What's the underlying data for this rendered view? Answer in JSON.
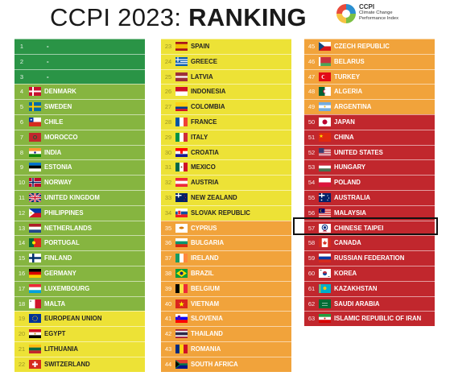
{
  "title": {
    "part1": "CCPI 2023: ",
    "part2": "RANKING"
  },
  "logo": {
    "line1": "CCPI",
    "line2": "Climate Change",
    "line3": "Performance Index"
  },
  "colors": {
    "dark_green": "#2a9446",
    "light_green": "#86b540",
    "yellow": "#ede236",
    "orange": "#f1a33b",
    "red": "#c1272d",
    "empty": "#2a9446"
  },
  "columns": [
    {
      "rows": [
        {
          "rank": "1",
          "name": "-",
          "color": "dark_green"
        },
        {
          "rank": "2",
          "name": "-",
          "color": "dark_green"
        },
        {
          "rank": "3",
          "name": "-",
          "color": "dark_green"
        },
        {
          "rank": "4",
          "name": "DENMARK",
          "color": "light_green",
          "flag": "denmark-flag-icon"
        },
        {
          "rank": "5",
          "name": "SWEDEN",
          "color": "light_green",
          "flag": "sweden-flag-icon"
        },
        {
          "rank": "6",
          "name": "CHILE",
          "color": "light_green",
          "flag": "chile-flag-icon"
        },
        {
          "rank": "7",
          "name": "MOROCCO",
          "color": "light_green",
          "flag": "morocco-flag-icon"
        },
        {
          "rank": "8",
          "name": "INDIA",
          "color": "light_green",
          "flag": "india-flag-icon"
        },
        {
          "rank": "9",
          "name": "ESTONIA",
          "color": "light_green",
          "flag": "estonia-flag-icon"
        },
        {
          "rank": "10",
          "name": "NORWAY",
          "color": "light_green",
          "flag": "norway-flag-icon"
        },
        {
          "rank": "11",
          "name": "UNITED KINGDOM",
          "color": "light_green",
          "flag": "uk-flag-icon"
        },
        {
          "rank": "12",
          "name": "PHILIPPINES",
          "color": "light_green",
          "flag": "philippines-flag-icon"
        },
        {
          "rank": "13",
          "name": "NETHERLANDS",
          "color": "light_green",
          "flag": "netherlands-flag-icon"
        },
        {
          "rank": "14",
          "name": "PORTUGAL",
          "color": "light_green",
          "flag": "portugal-flag-icon"
        },
        {
          "rank": "15",
          "name": "FINLAND",
          "color": "light_green",
          "flag": "finland-flag-icon"
        },
        {
          "rank": "16",
          "name": "GERMANY",
          "color": "light_green",
          "flag": "germany-flag-icon"
        },
        {
          "rank": "17",
          "name": "LUXEMBOURG",
          "color": "light_green",
          "flag": "luxembourg-flag-icon"
        },
        {
          "rank": "18",
          "name": "MALTA",
          "color": "light_green",
          "flag": "malta-flag-icon"
        },
        {
          "rank": "19",
          "name": "EUROPEAN UNION",
          "color": "yellow",
          "flag": "eu-flag-icon"
        },
        {
          "rank": "20",
          "name": "EGYPT",
          "color": "yellow",
          "flag": "egypt-flag-icon"
        },
        {
          "rank": "21",
          "name": "LITHUANIA",
          "color": "yellow",
          "flag": "lithuania-flag-icon"
        },
        {
          "rank": "22",
          "name": "SWITZERLAND",
          "color": "yellow",
          "flag": "switzerland-flag-icon"
        }
      ]
    },
    {
      "rows": [
        {
          "rank": "23",
          "name": "SPAIN",
          "color": "yellow",
          "flag": "spain-flag-icon"
        },
        {
          "rank": "24",
          "name": "GREECE",
          "color": "yellow",
          "flag": "greece-flag-icon"
        },
        {
          "rank": "25",
          "name": "LATVIA",
          "color": "yellow",
          "flag": "latvia-flag-icon"
        },
        {
          "rank": "26",
          "name": "INDONESIA",
          "color": "yellow",
          "flag": "indonesia-flag-icon"
        },
        {
          "rank": "27",
          "name": "COLOMBIA",
          "color": "yellow",
          "flag": "colombia-flag-icon"
        },
        {
          "rank": "28",
          "name": "FRANCE",
          "color": "yellow",
          "flag": "france-flag-icon"
        },
        {
          "rank": "29",
          "name": "ITALY",
          "color": "yellow",
          "flag": "italy-flag-icon"
        },
        {
          "rank": "30",
          "name": "CROATIA",
          "color": "yellow",
          "flag": "croatia-flag-icon"
        },
        {
          "rank": "31",
          "name": "MEXICO",
          "color": "yellow",
          "flag": "mexico-flag-icon"
        },
        {
          "rank": "32",
          "name": "AUSTRIA",
          "color": "yellow",
          "flag": "austria-flag-icon"
        },
        {
          "rank": "33",
          "name": "NEW ZEALAND",
          "color": "yellow",
          "flag": "new-zealand-flag-icon"
        },
        {
          "rank": "34",
          "name": "SLOVAK REPUBLIC",
          "color": "yellow",
          "flag": "slovakia-flag-icon"
        },
        {
          "rank": "35",
          "name": "CYPRUS",
          "color": "orange",
          "flag": "cyprus-flag-icon"
        },
        {
          "rank": "36",
          "name": "BULGARIA",
          "color": "orange",
          "flag": "bulgaria-flag-icon"
        },
        {
          "rank": "37",
          "name": "IRELAND",
          "color": "orange",
          "flag": "ireland-flag-icon"
        },
        {
          "rank": "38",
          "name": "BRAZIL",
          "color": "orange",
          "flag": "brazil-flag-icon"
        },
        {
          "rank": "39",
          "name": "BELGIUM",
          "color": "orange",
          "flag": "belgium-flag-icon"
        },
        {
          "rank": "40",
          "name": "VIETNAM",
          "color": "orange",
          "flag": "vietnam-flag-icon"
        },
        {
          "rank": "41",
          "name": "SLOVENIA",
          "color": "orange",
          "flag": "slovenia-flag-icon"
        },
        {
          "rank": "42",
          "name": "THAILAND",
          "color": "orange",
          "flag": "thailand-flag-icon"
        },
        {
          "rank": "43",
          "name": "ROMANIA",
          "color": "orange",
          "flag": "romania-flag-icon"
        },
        {
          "rank": "44",
          "name": "SOUTH AFRICA",
          "color": "orange",
          "flag": "south-africa-flag-icon"
        }
      ]
    },
    {
      "rows": [
        {
          "rank": "45",
          "name": "CZECH REPUBLIC",
          "color": "orange",
          "flag": "czech-flag-icon"
        },
        {
          "rank": "46",
          "name": "BELARUS",
          "color": "orange",
          "flag": "belarus-flag-icon"
        },
        {
          "rank": "47",
          "name": "TURKEY",
          "color": "orange",
          "flag": "turkey-flag-icon"
        },
        {
          "rank": "48",
          "name": "ALGERIA",
          "color": "orange",
          "flag": "algeria-flag-icon"
        },
        {
          "rank": "49",
          "name": "ARGENTINA",
          "color": "orange",
          "flag": "argentina-flag-icon"
        },
        {
          "rank": "50",
          "name": "JAPAN",
          "color": "red",
          "flag": "japan-flag-icon"
        },
        {
          "rank": "51",
          "name": "CHINA",
          "color": "red",
          "flag": "china-flag-icon"
        },
        {
          "rank": "52",
          "name": "UNITED STATES",
          "color": "red",
          "flag": "usa-flag-icon"
        },
        {
          "rank": "53",
          "name": "HUNGARY",
          "color": "red",
          "flag": "hungary-flag-icon"
        },
        {
          "rank": "54",
          "name": "POLAND",
          "color": "red",
          "flag": "poland-flag-icon"
        },
        {
          "rank": "55",
          "name": "AUSTRALIA",
          "color": "red",
          "flag": "australia-flag-icon"
        },
        {
          "rank": "56",
          "name": "MALAYSIA",
          "color": "red",
          "flag": "malaysia-flag-icon"
        },
        {
          "rank": "57",
          "name": "CHINESE TAIPEI",
          "color": "red",
          "flag": "chinese-taipei-flag-icon"
        },
        {
          "rank": "58",
          "name": "CANADA",
          "color": "red",
          "flag": "canada-flag-icon"
        },
        {
          "rank": "59",
          "name": "RUSSIAN FEDERATION",
          "color": "red",
          "flag": "russia-flag-icon"
        },
        {
          "rank": "60",
          "name": "KOREA",
          "color": "red",
          "flag": "korea-flag-icon"
        },
        {
          "rank": "61",
          "name": "KAZAKHSTAN",
          "color": "red",
          "flag": "kazakhstan-flag-icon"
        },
        {
          "rank": "62",
          "name": "SAUDI ARABIA",
          "color": "red",
          "flag": "saudi-arabia-flag-icon"
        },
        {
          "rank": "63",
          "name": "ISLAMIC REPUBLIC OF IRAN",
          "color": "red",
          "flag": "iran-flag-icon"
        }
      ]
    }
  ]
}
